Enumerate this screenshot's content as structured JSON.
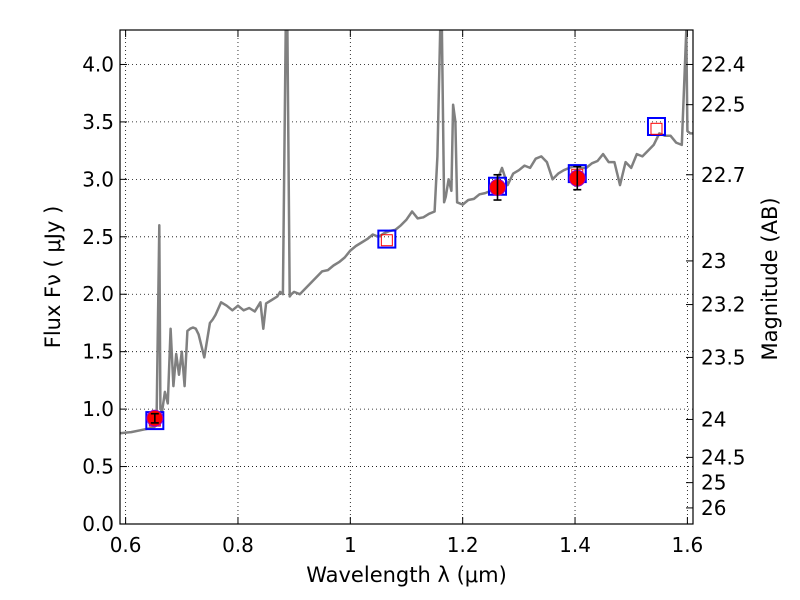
{
  "chart_data": {
    "type": "line",
    "xlabel": "Wavelength  λ (μm)",
    "ylabel": "Flux  Fν  ( μJy )",
    "ylabel_right": "Magnitude (AB)",
    "xlim": [
      0.59,
      1.61
    ],
    "ylim": [
      0.0,
      4.3
    ],
    "grid": true,
    "x_ticks": [
      0.6,
      0.8,
      1.0,
      1.2,
      1.4,
      1.6
    ],
    "x_tick_labels": [
      "0.6",
      "0.8",
      "1",
      "1.2",
      "1.4",
      "1.6"
    ],
    "y_ticks": [
      0.0,
      0.5,
      1.0,
      1.5,
      2.0,
      2.5,
      3.0,
      3.5,
      4.0
    ],
    "y_tick_labels": [
      "0.0",
      "0.5",
      "1.0",
      "1.5",
      "2.0",
      "2.5",
      "3.0",
      "3.5",
      "4.0"
    ],
    "mag_ticks": [
      {
        "label": "22.4",
        "flux": 4.0
      },
      {
        "label": "22.5",
        "flux": 3.65
      },
      {
        "label": "22.7",
        "flux": 3.04
      },
      {
        "label": "23",
        "flux": 2.29
      },
      {
        "label": "23.2",
        "flux": 1.91
      },
      {
        "label": "23.5",
        "flux": 1.45
      },
      {
        "label": "24",
        "flux": 0.91
      },
      {
        "label": "24.5",
        "flux": 0.58
      },
      {
        "label": "25",
        "flux": 0.36
      },
      {
        "label": "26",
        "flux": 0.14
      }
    ],
    "series": [
      {
        "type": "line",
        "color": "#808080",
        "x": [
          0.59,
          0.61,
          0.63,
          0.65,
          0.655,
          0.66,
          0.662,
          0.665,
          0.67,
          0.675,
          0.68,
          0.685,
          0.69,
          0.695,
          0.7,
          0.705,
          0.71,
          0.715,
          0.72,
          0.725,
          0.73,
          0.74,
          0.75,
          0.755,
          0.76,
          0.77,
          0.78,
          0.79,
          0.8,
          0.81,
          0.82,
          0.83,
          0.84,
          0.845,
          0.85,
          0.86,
          0.87,
          0.875,
          0.88,
          0.885,
          0.888,
          0.892,
          0.895,
          0.9,
          0.91,
          0.92,
          0.93,
          0.94,
          0.95,
          0.96,
          0.97,
          0.98,
          0.99,
          1.0,
          1.01,
          1.02,
          1.03,
          1.04,
          1.05,
          1.06,
          1.07,
          1.08,
          1.09,
          1.1,
          1.11,
          1.12,
          1.13,
          1.14,
          1.15,
          1.155,
          1.16,
          1.163,
          1.167,
          1.17,
          1.175,
          1.18,
          1.183,
          1.187,
          1.19,
          1.2,
          1.21,
          1.22,
          1.23,
          1.24,
          1.25,
          1.26,
          1.27,
          1.28,
          1.29,
          1.3,
          1.31,
          1.32,
          1.33,
          1.34,
          1.35,
          1.36,
          1.37,
          1.38,
          1.39,
          1.4,
          1.41,
          1.42,
          1.43,
          1.44,
          1.45,
          1.46,
          1.47,
          1.475,
          1.48,
          1.49,
          1.5,
          1.51,
          1.52,
          1.53,
          1.54,
          1.55,
          1.56,
          1.57,
          1.58,
          1.59,
          1.598,
          1.6,
          1.605,
          1.61
        ],
        "y": [
          0.79,
          0.8,
          0.82,
          0.84,
          0.86,
          2.6,
          1.0,
          0.98,
          1.15,
          1.05,
          1.7,
          1.2,
          1.48,
          1.3,
          1.5,
          1.2,
          1.68,
          1.7,
          1.71,
          1.7,
          1.65,
          1.45,
          1.75,
          1.78,
          1.82,
          1.93,
          1.9,
          1.86,
          1.9,
          1.86,
          1.88,
          1.85,
          1.93,
          1.7,
          1.92,
          1.95,
          1.98,
          2.02,
          2.0,
          4.3,
          4.3,
          1.98,
          2.0,
          2.02,
          2.0,
          2.05,
          2.1,
          2.15,
          2.2,
          2.21,
          2.25,
          2.28,
          2.32,
          2.38,
          2.42,
          2.45,
          2.48,
          2.52,
          2.5,
          2.53,
          2.55,
          2.56,
          2.6,
          2.65,
          2.72,
          2.66,
          2.67,
          2.7,
          2.72,
          3.2,
          4.3,
          4.3,
          2.8,
          2.85,
          3.0,
          2.9,
          3.65,
          3.5,
          2.8,
          2.78,
          2.82,
          2.83,
          2.87,
          2.88,
          2.9,
          2.97,
          3.1,
          2.95,
          3.05,
          3.08,
          3.12,
          3.1,
          3.18,
          3.2,
          3.15,
          3.0,
          3.05,
          3.08,
          3.1,
          3.12,
          3.1,
          3.1,
          3.14,
          3.16,
          3.22,
          3.15,
          3.15,
          3.05,
          2.95,
          3.15,
          3.1,
          3.22,
          3.2,
          3.25,
          3.3,
          3.4,
          3.38,
          3.38,
          3.32,
          3.3,
          4.3,
          3.42,
          3.4,
          3.4
        ]
      },
      {
        "type": "square",
        "color": "#0000ff",
        "x": [
          0.652,
          1.065,
          1.262,
          1.404,
          1.545
        ],
        "y": [
          0.9,
          2.48,
          2.94,
          3.05,
          3.46
        ]
      },
      {
        "type": "square-small",
        "color": "#ff0000",
        "x": [
          0.652,
          1.065,
          1.262,
          1.404,
          1.545
        ],
        "y": [
          0.9,
          2.47,
          2.93,
          3.04,
          3.44
        ]
      },
      {
        "type": "point",
        "color": "#ff0000",
        "edge": "#9900cc",
        "x": [
          0.652,
          1.262,
          1.404
        ],
        "y": [
          0.92,
          2.93,
          3.01
        ],
        "yerr": [
          0.04,
          0.11,
          0.1
        ]
      }
    ]
  }
}
